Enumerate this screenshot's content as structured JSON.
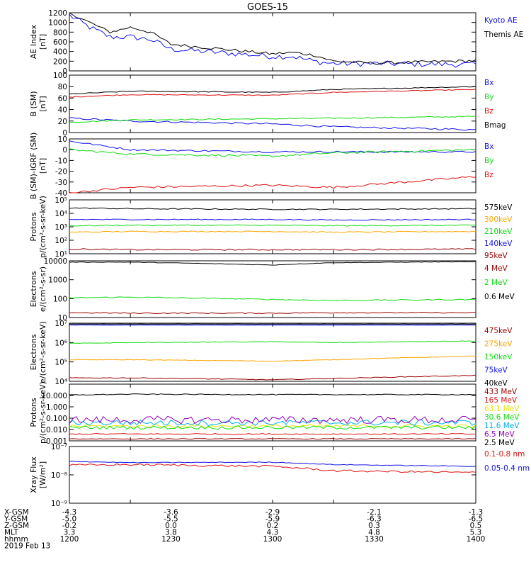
{
  "title": "GOES-15",
  "colors": {
    "black": "#000000",
    "blue": "#1010ee",
    "green": "#10dd10",
    "red": "#e01010",
    "orange": "#ffa500",
    "darkred": "#990000",
    "yellow": "#e8e800",
    "cyan": "#00b0ee",
    "purple": "#9000c0"
  },
  "orbit": {
    "rows": [
      {
        "label": "X-GSM",
        "values": [
          "-4.3",
          "-3.6",
          "-2.9",
          "-2.1",
          "-1.3"
        ]
      },
      {
        "label": "Y-GSM",
        "values": [
          "-5.0",
          "-5.5",
          "-5.9",
          "-6.3",
          "-6.5"
        ]
      },
      {
        "label": "Z-GSM",
        "values": [
          "-0.2",
          "0.0",
          "0.2",
          "0.3",
          "0.5"
        ]
      },
      {
        "label": "MLT",
        "values": [
          "3.3",
          "3.8",
          "4.3",
          "4.8",
          "5.3"
        ]
      },
      {
        "label": "hhmm",
        "values": [
          "1200",
          "1230",
          "1300",
          "1330",
          "1400"
        ]
      }
    ],
    "date": "2019 Feb 13"
  },
  "chart_data": [
    {
      "type": "line",
      "ylabel": "AE Index",
      "yunit": "[nT]",
      "scale": "linear",
      "ylim": [
        0,
        1200
      ],
      "ytick_labels": [
        "0",
        "200",
        "400",
        "600",
        "800",
        "1000",
        "1200"
      ],
      "yticks": [
        0,
        200,
        400,
        600,
        800,
        1000,
        1200
      ],
      "x": [
        1200,
        1210,
        1220,
        1230,
        1240,
        1250,
        1300,
        1310,
        1320,
        1330,
        1340,
        1350,
        1400
      ],
      "series": [
        {
          "name": "Kyoto AE",
          "color": "blue",
          "values": [
            1150,
            900,
            700,
            700,
            650,
            450,
            300,
            300,
            200,
            150,
            150,
            150,
            130
          ],
          "noise": 0.1
        },
        {
          "name": "Themis AE",
          "color": "black",
          "values": [
            1200,
            1000,
            800,
            900,
            800,
            550,
            350,
            380,
            330,
            200,
            180,
            160,
            210
          ],
          "noise": 0.05
        }
      ]
    },
    {
      "type": "line",
      "ylabel": "B (SM)",
      "yunit": "[nT]",
      "scale": "linear",
      "ylim": [
        0,
        100
      ],
      "ytick_labels": [
        "0",
        "20",
        "40",
        "60",
        "80",
        "100"
      ],
      "yticks": [
        0,
        20,
        40,
        60,
        80,
        100
      ],
      "x": [
        1200,
        1230,
        1300,
        1330,
        1400
      ],
      "series": [
        {
          "name": "Bx",
          "color": "blue",
          "values": [
            25,
            20,
            15,
            10,
            5
          ],
          "noise": 0.03
        },
        {
          "name": "By",
          "color": "green",
          "values": [
            18,
            22,
            24,
            25,
            28
          ],
          "noise": 0.02
        },
        {
          "name": "Bz",
          "color": "red",
          "values": [
            62,
            66,
            65,
            70,
            75
          ],
          "noise": 0.015
        },
        {
          "name": "Bmag",
          "color": "black",
          "values": [
            67,
            72,
            70,
            75,
            80
          ],
          "noise": 0.015
        }
      ]
    },
    {
      "type": "line",
      "ylabel": "B (SM)-IGRF (SM)",
      "yunit": "[nT]",
      "scale": "linear",
      "ylim": [
        -40,
        10
      ],
      "ytick_labels": [
        "-40",
        "-30",
        "-20",
        "-10",
        "0",
        "10"
      ],
      "yticks": [
        -40,
        -30,
        -20,
        -10,
        0,
        10
      ],
      "x": [
        1200,
        1230,
        1300,
        1330,
        1400
      ],
      "series": [
        {
          "name": "Bx",
          "color": "blue",
          "values": [
            8,
            0,
            -2,
            -2,
            -2
          ],
          "noise": 0.03
        },
        {
          "name": "By",
          "color": "green",
          "values": [
            0,
            -4,
            -6,
            -3,
            0
          ],
          "noise": 0.04
        },
        {
          "name": "Bz",
          "color": "red",
          "values": [
            -40,
            -35,
            -33,
            -35,
            -25
          ],
          "noise": 0.04
        }
      ]
    },
    {
      "type": "line",
      "ylabel": "Protons",
      "yunit": "p/(cm²-s-sr-keV)",
      "scale": "log",
      "ylim": [
        10,
        100000
      ],
      "ytick_labels": [
        "10¹",
        "10²",
        "10³",
        "10⁴",
        "10⁵"
      ],
      "yticks": [
        10,
        100,
        1000,
        10000,
        100000
      ],
      "x": [
        1200,
        1230,
        1300,
        1330,
        1400
      ],
      "series": [
        {
          "name": "575keV",
          "color": "black",
          "values": [
            25000,
            22000,
            20000,
            20000,
            22000
          ],
          "noise": 0.06
        },
        {
          "name": "300keV",
          "color": "orange",
          "values": [
            400,
            450,
            450,
            400,
            450
          ],
          "noise": 0.06
        },
        {
          "name": "210keV",
          "color": "green",
          "values": [
            1200,
            1300,
            1300,
            1200,
            1300
          ],
          "noise": 0.06
        },
        {
          "name": "140keV",
          "color": "blue",
          "values": [
            3500,
            3500,
            3500,
            3200,
            3500
          ],
          "noise": 0.06
        },
        {
          "name": "95keV",
          "color": "darkred",
          "values": [
            22,
            20,
            20,
            20,
            22
          ],
          "noise": 0.08
        }
      ]
    },
    {
      "type": "line",
      "ylabel": "Electrons",
      "yunit": "e/(cm²-s-sr)",
      "scale": "log",
      "ylim": [
        10,
        10000
      ],
      "ytick_labels": [
        "10",
        "100",
        "1000",
        "10000"
      ],
      "yticks": [
        10,
        100,
        1000,
        10000
      ],
      "x": [
        1200,
        1230,
        1300,
        1330,
        1400
      ],
      "series": [
        {
          "name": "4 MeV",
          "color": "darkred",
          "values": [
            18,
            17,
            17,
            18,
            18
          ],
          "noise": 0.06
        },
        {
          "name": "2 MeV",
          "color": "green",
          "values": [
            110,
            120,
            90,
            80,
            90
          ],
          "noise": 0.06
        },
        {
          "name": "0.6 MeV",
          "color": "black",
          "values": [
            8500,
            8500,
            6000,
            8000,
            9000
          ],
          "noise": 0.03
        }
      ]
    },
    {
      "type": "line",
      "ylabel": "Electrons",
      "yunit": "e/(cm²-s-sr-keV)",
      "scale": "log",
      "ylim": [
        10000,
        10000000
      ],
      "ytick_labels": [
        "10⁴",
        "10⁵",
        "10⁶",
        "10⁷"
      ],
      "yticks": [
        10000,
        100000,
        1000000,
        10000000
      ],
      "x": [
        1200,
        1230,
        1300,
        1330,
        1400
      ],
      "series": [
        {
          "name": "475keV",
          "color": "darkred",
          "values": [
            15000,
            15000,
            12000,
            14000,
            20000
          ],
          "noise": 0.04
        },
        {
          "name": "275keV",
          "color": "orange",
          "values": [
            130000,
            130000,
            110000,
            130000,
            200000
          ],
          "noise": 0.03
        },
        {
          "name": "150keV",
          "color": "green",
          "values": [
            900000,
            1000000,
            1100000,
            1000000,
            1200000
          ],
          "noise": 0.03
        },
        {
          "name": "75keV",
          "color": "blue",
          "values": [
            8000000,
            8000000,
            8000000,
            8000000,
            8000000
          ],
          "noise": 0.01
        },
        {
          "name": "40keV",
          "color": "black",
          "values": [
            9000000,
            9000000,
            9000000,
            9000000,
            9000000
          ],
          "noise": 0.01
        }
      ]
    },
    {
      "type": "line",
      "ylabel": "Protons",
      "yunit": "p/(cm²-s-sr-keV)",
      "scale": "log",
      "ylim": [
        0.001,
        100
      ],
      "ytick_labels": [
        "0.001",
        "0.010",
        "0.100",
        "1.000",
        "10.000"
      ],
      "yticks": [
        0.001,
        0.01,
        0.1,
        1,
        10
      ],
      "x": [
        1200,
        1230,
        1300,
        1330,
        1400
      ],
      "series": [
        {
          "name": "433 MeV",
          "color": "darkred",
          "values": [
            0.0015,
            0.0015,
            0.0015,
            0.0015,
            0.0015
          ],
          "noise": 0.05
        },
        {
          "name": "165 MeV",
          "color": "red",
          "values": [
            0.004,
            0.004,
            0.004,
            0.004,
            0.004
          ],
          "noise": 0.08
        },
        {
          "name": "63.1 MeV",
          "color": "yellow",
          "values": [
            0.02,
            0.02,
            0.02,
            0.02,
            0.02
          ],
          "noise": 0.2
        },
        {
          "name": "30.6 MeV",
          "color": "green",
          "values": [
            0.015,
            0.015,
            0.015,
            0.015,
            0.015
          ],
          "noise": 0.2
        },
        {
          "name": "11.6 MeV",
          "color": "cyan",
          "values": [
            0.04,
            0.04,
            0.04,
            0.04,
            0.04
          ],
          "noise": 0.35
        },
        {
          "name": "6.5 MeV",
          "color": "purple",
          "values": [
            0.07,
            0.07,
            0.07,
            0.07,
            0.07
          ],
          "noise": 0.45
        },
        {
          "name": "2.5 MeV",
          "color": "black",
          "values": [
            11,
            13,
            12,
            12,
            12
          ],
          "noise": 0.05
        }
      ]
    },
    {
      "type": "line",
      "ylabel": "Xray Flux",
      "yunit": "[W/m²]",
      "scale": "log",
      "ylim": [
        1e-09,
        1e-07
      ],
      "ytick_labels": [
        "10⁻⁹",
        "10⁻⁸",
        "10⁻⁷"
      ],
      "yticks": [
        1e-09,
        1e-08,
        1e-07
      ],
      "x": [
        1200,
        1230,
        1300,
        1330,
        1400
      ],
      "series": [
        {
          "name": "0.1-0.8 nm",
          "color": "red",
          "values": [
            2.2e-08,
            2.3e-08,
            2e-08,
            1.4e-08,
            1.2e-08
          ],
          "noise": 0.12
        },
        {
          "name": "0.05-0.4 nm",
          "color": "blue",
          "values": [
            3e-08,
            2.7e-08,
            2.8e-08,
            2.3e-08,
            2e-08
          ],
          "noise": 0.04
        }
      ]
    }
  ]
}
